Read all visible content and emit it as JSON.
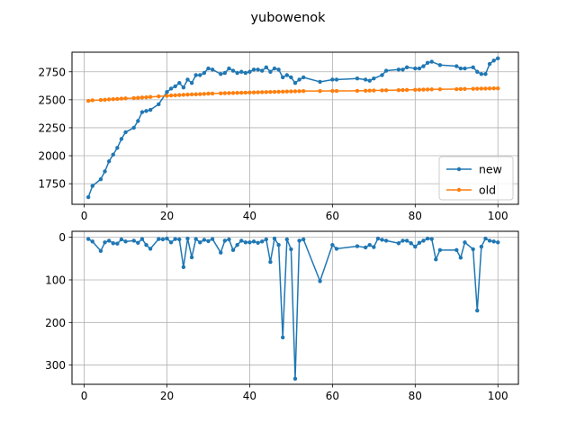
{
  "chart_data": {
    "title": "yubowenok",
    "panels": [
      {
        "type": "line",
        "xlim": [
          -2.95,
          104.95
        ],
        "ylim": [
          1566,
          2925
        ],
        "xticks": [
          0,
          20,
          40,
          60,
          80,
          100
        ],
        "yticks": [
          1750,
          2000,
          2250,
          2500,
          2750
        ],
        "grid": true,
        "inverted_y": false,
        "legend": {
          "position": "lower-right",
          "entries": [
            "new",
            "old"
          ]
        },
        "series": [
          {
            "name": "new",
            "color": "#1f77b4",
            "x": [
              1,
              2,
              4,
              5,
              6,
              7,
              8,
              9,
              10,
              12,
              13,
              14,
              15,
              16,
              18,
              20,
              21,
              22,
              23,
              24,
              25,
              26,
              27,
              28,
              29,
              30,
              31,
              33,
              34,
              35,
              36,
              37,
              38,
              39,
              40,
              41,
              42,
              43,
              44,
              45,
              46,
              47,
              48,
              49,
              50,
              51,
              52,
              53,
              57,
              60,
              61,
              66,
              68,
              69,
              70,
              72,
              73,
              76,
              77,
              78,
              80,
              81,
              82,
              83,
              84,
              86,
              90,
              91,
              92,
              94,
              95,
              96,
              97,
              98,
              99,
              100
            ],
            "values": [
              1630,
              1730,
              1790,
              1860,
              1950,
              2010,
              2070,
              2150,
              2210,
              2250,
              2310,
              2390,
              2400,
              2410,
              2460,
              2570,
              2600,
              2620,
              2650,
              2610,
              2680,
              2650,
              2720,
              2720,
              2740,
              2780,
              2770,
              2730,
              2740,
              2780,
              2760,
              2740,
              2750,
              2740,
              2750,
              2770,
              2770,
              2760,
              2790,
              2750,
              2780,
              2770,
              2700,
              2720,
              2700,
              2650,
              2680,
              2700,
              2660,
              2680,
              2680,
              2690,
              2680,
              2670,
              2690,
              2720,
              2760,
              2770,
              2770,
              2790,
              2780,
              2780,
              2800,
              2830,
              2840,
              2810,
              2800,
              2780,
              2780,
              2790,
              2750,
              2730,
              2730,
              2820,
              2850,
              2870
            ]
          },
          {
            "name": "old",
            "color": "#ff7f0e",
            "x": [
              1,
              2,
              4,
              5,
              6,
              7,
              8,
              9,
              10,
              12,
              13,
              14,
              15,
              16,
              18,
              20,
              21,
              22,
              23,
              24,
              25,
              26,
              27,
              28,
              29,
              30,
              31,
              33,
              34,
              35,
              36,
              37,
              38,
              39,
              40,
              41,
              42,
              43,
              44,
              45,
              46,
              47,
              48,
              49,
              50,
              51,
              52,
              53,
              57,
              60,
              61,
              66,
              68,
              69,
              70,
              72,
              73,
              76,
              77,
              78,
              80,
              81,
              82,
              83,
              84,
              86,
              90,
              91,
              92,
              94,
              95,
              96,
              97,
              98,
              99,
              100
            ],
            "values": [
              2490,
              2495,
              2498,
              2500,
              2503,
              2505,
              2507,
              2510,
              2512,
              2515,
              2517,
              2520,
              2522,
              2525,
              2530,
              2535,
              2538,
              2540,
              2542,
              2544,
              2546,
              2548,
              2549,
              2550,
              2552,
              2555,
              2556,
              2558,
              2559,
              2560,
              2561,
              2562,
              2563,
              2564,
              2565,
              2566,
              2567,
              2568,
              2569,
              2570,
              2571,
              2572,
              2573,
              2574,
              2575,
              2576,
              2577,
              2578,
              2578,
              2579,
              2579,
              2580,
              2581,
              2582,
              2583,
              2584,
              2585,
              2586,
              2587,
              2588,
              2589,
              2590,
              2591,
              2592,
              2593,
              2594,
              2595,
              2596,
              2597,
              2598,
              2599,
              2600,
              2600,
              2601,
              2602,
              2602
            ]
          }
        ]
      },
      {
        "type": "line",
        "xlim": [
          -2.95,
          104.95
        ],
        "ylim": [
          345,
          -14
        ],
        "xticks": [
          0,
          20,
          40,
          60,
          80,
          100
        ],
        "yticks": [
          0,
          100,
          200,
          300
        ],
        "grid": true,
        "inverted_y": true,
        "series": [
          {
            "color": "#1f77b4",
            "x": [
              1,
              2,
              4,
              5,
              6,
              7,
              8,
              9,
              10,
              12,
              13,
              14,
              15,
              16,
              18,
              19,
              20,
              21,
              22,
              23,
              24,
              25,
              26,
              27,
              28,
              29,
              30,
              31,
              33,
              34,
              35,
              36,
              37,
              38,
              39,
              40,
              41,
              42,
              43,
              44,
              45,
              46,
              47,
              48,
              49,
              50,
              51,
              52,
              53,
              57,
              60,
              61,
              66,
              68,
              69,
              70,
              71,
              72,
              73,
              76,
              77,
              78,
              79,
              80,
              81,
              82,
              83,
              84,
              85,
              86,
              90,
              91,
              92,
              94,
              95,
              96,
              97,
              98,
              99,
              100
            ],
            "values": [
              4,
              10,
              32,
              12,
              8,
              14,
              15,
              5,
              10,
              8,
              13,
              4,
              18,
              27,
              4,
              5,
              3,
              12,
              4,
              5,
              70,
              3,
              47,
              4,
              12,
              6,
              9,
              4,
              36,
              8,
              5,
              30,
              18,
              8,
              12,
              12,
              10,
              13,
              10,
              5,
              58,
              3,
              18,
              235,
              5,
              28,
              332,
              8,
              5,
              103,
              18,
              27,
              21,
              24,
              18,
              23,
              3,
              6,
              8,
              14,
              8,
              8,
              14,
              22,
              13,
              8,
              3,
              4,
              52,
              30,
              30,
              48,
              12,
              28,
              172,
              22,
              3,
              8,
              10,
              12
            ]
          }
        ]
      }
    ]
  }
}
